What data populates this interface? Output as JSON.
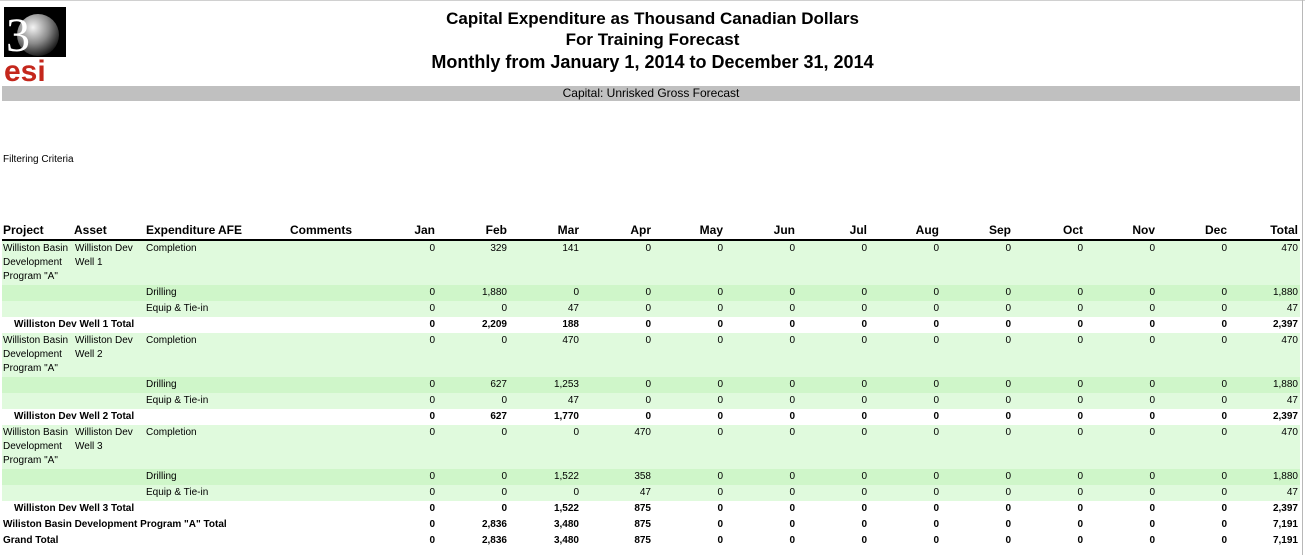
{
  "logo": {
    "digit": "3",
    "letters": "esi"
  },
  "report": {
    "title": "Capital Expenditure as Thousand Canadian Dollars",
    "subtitle": "For Training Forecast",
    "period": "Monthly from January 1, 2014 to December 31, 2014",
    "section": "Capital: Unrisked Gross Forecast",
    "filtering_label": "Filtering Criteria"
  },
  "columns": {
    "project": "Project",
    "asset": "Asset",
    "expenditure": "Expenditure",
    "afe": "AFE",
    "comments": "Comments",
    "months": [
      "Jan",
      "Feb",
      "Mar",
      "Apr",
      "May",
      "Jun",
      "Jul",
      "Aug",
      "Sep",
      "Oct",
      "Nov",
      "Dec"
    ],
    "total": "Total"
  },
  "rows": [
    {
      "kind": "detail",
      "project": [
        "Williston Basin",
        "Development",
        "Program \"A\""
      ],
      "asset": [
        "Williston Dev",
        "Well 1"
      ],
      "exp": "Completion",
      "values": [
        "0",
        "329",
        "141",
        "0",
        "0",
        "0",
        "0",
        "0",
        "0",
        "0",
        "0",
        "0"
      ],
      "total": "470"
    },
    {
      "kind": "detail",
      "project": [],
      "asset": [],
      "exp": "Drilling",
      "values": [
        "0",
        "1,880",
        "0",
        "0",
        "0",
        "0",
        "0",
        "0",
        "0",
        "0",
        "0",
        "0"
      ],
      "total": "1,880"
    },
    {
      "kind": "detail",
      "project": [],
      "asset": [],
      "exp": "Equip & Tie-in",
      "values": [
        "0",
        "0",
        "47",
        "0",
        "0",
        "0",
        "0",
        "0",
        "0",
        "0",
        "0",
        "0"
      ],
      "total": "47"
    },
    {
      "kind": "total",
      "label": "Williston Dev Well 1 Total",
      "values": [
        "0",
        "2,209",
        "188",
        "0",
        "0",
        "0",
        "0",
        "0",
        "0",
        "0",
        "0",
        "0"
      ],
      "total": "2,397"
    },
    {
      "kind": "detail",
      "project": [
        "Williston Basin",
        "Development",
        "Program \"A\""
      ],
      "asset": [
        "Williston Dev",
        "Well 2"
      ],
      "exp": "Completion",
      "values": [
        "0",
        "0",
        "470",
        "0",
        "0",
        "0",
        "0",
        "0",
        "0",
        "0",
        "0",
        "0"
      ],
      "total": "470"
    },
    {
      "kind": "detail",
      "project": [],
      "asset": [],
      "exp": "Drilling",
      "values": [
        "0",
        "627",
        "1,253",
        "0",
        "0",
        "0",
        "0",
        "0",
        "0",
        "0",
        "0",
        "0"
      ],
      "total": "1,880"
    },
    {
      "kind": "detail",
      "project": [],
      "asset": [],
      "exp": "Equip & Tie-in",
      "values": [
        "0",
        "0",
        "47",
        "0",
        "0",
        "0",
        "0",
        "0",
        "0",
        "0",
        "0",
        "0"
      ],
      "total": "47"
    },
    {
      "kind": "total",
      "label": "Williston Dev Well 2 Total",
      "values": [
        "0",
        "627",
        "1,770",
        "0",
        "0",
        "0",
        "0",
        "0",
        "0",
        "0",
        "0",
        "0"
      ],
      "total": "2,397"
    },
    {
      "kind": "detail",
      "project": [
        "Williston Basin",
        "Development",
        "Program \"A\""
      ],
      "asset": [
        "Williston Dev",
        "Well 3"
      ],
      "exp": "Completion",
      "values": [
        "0",
        "0",
        "0",
        "470",
        "0",
        "0",
        "0",
        "0",
        "0",
        "0",
        "0",
        "0"
      ],
      "total": "470"
    },
    {
      "kind": "detail",
      "project": [],
      "asset": [],
      "exp": "Drilling",
      "values": [
        "0",
        "0",
        "1,522",
        "358",
        "0",
        "0",
        "0",
        "0",
        "0",
        "0",
        "0",
        "0"
      ],
      "total": "1,880"
    },
    {
      "kind": "detail",
      "project": [],
      "asset": [],
      "exp": "Equip & Tie-in",
      "values": [
        "0",
        "0",
        "0",
        "47",
        "0",
        "0",
        "0",
        "0",
        "0",
        "0",
        "0",
        "0"
      ],
      "total": "47"
    },
    {
      "kind": "total",
      "label": "Williston Dev Well 3 Total",
      "values": [
        "0",
        "0",
        "1,522",
        "875",
        "0",
        "0",
        "0",
        "0",
        "0",
        "0",
        "0",
        "0"
      ],
      "total": "2,397"
    },
    {
      "kind": "grand",
      "label": "Wiliston Basin Development Program \"A\" Total",
      "values": [
        "0",
        "2,836",
        "3,480",
        "875",
        "0",
        "0",
        "0",
        "0",
        "0",
        "0",
        "0",
        "0"
      ],
      "total": "7,191"
    },
    {
      "kind": "grand",
      "label": "Grand Total",
      "values": [
        "0",
        "2,836",
        "3,480",
        "875",
        "0",
        "0",
        "0",
        "0",
        "0",
        "0",
        "0",
        "0"
      ],
      "total": "7,191"
    }
  ]
}
